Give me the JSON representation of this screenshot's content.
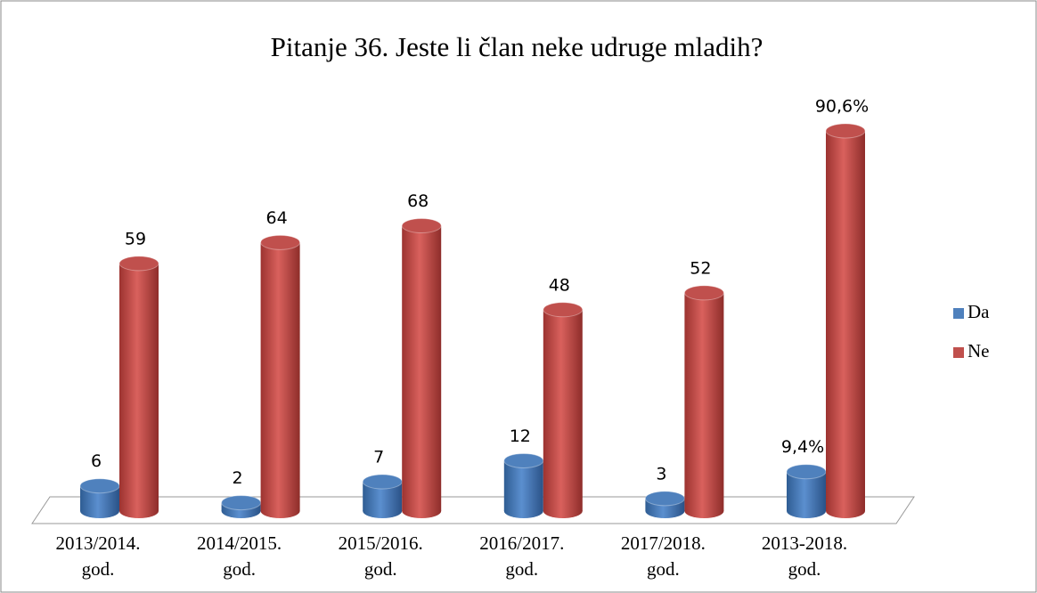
{
  "chart_data": {
    "type": "bar3d",
    "title": "Pitanje 36. Jeste li član neke udruge mladih?",
    "categories": [
      "2013/2014. god.",
      "2014/2015. god.",
      "2015/2016. god.",
      "2016/2017. god.",
      "2017/2018. god.",
      "2013-2018. god."
    ],
    "series": [
      {
        "name": "Da",
        "color": "#4f81bd",
        "values": [
          6,
          2,
          7,
          12,
          3,
          9.4
        ],
        "value_labels": [
          "6",
          "2",
          "7",
          "12",
          "3",
          "9,4%"
        ]
      },
      {
        "name": "Ne",
        "color": "#c0504d",
        "values": [
          59,
          64,
          68,
          48,
          52,
          90.6
        ],
        "value_labels": [
          "59",
          "64",
          "68",
          "48",
          "52",
          "90,6%"
        ]
      }
    ],
    "legend": "right"
  }
}
